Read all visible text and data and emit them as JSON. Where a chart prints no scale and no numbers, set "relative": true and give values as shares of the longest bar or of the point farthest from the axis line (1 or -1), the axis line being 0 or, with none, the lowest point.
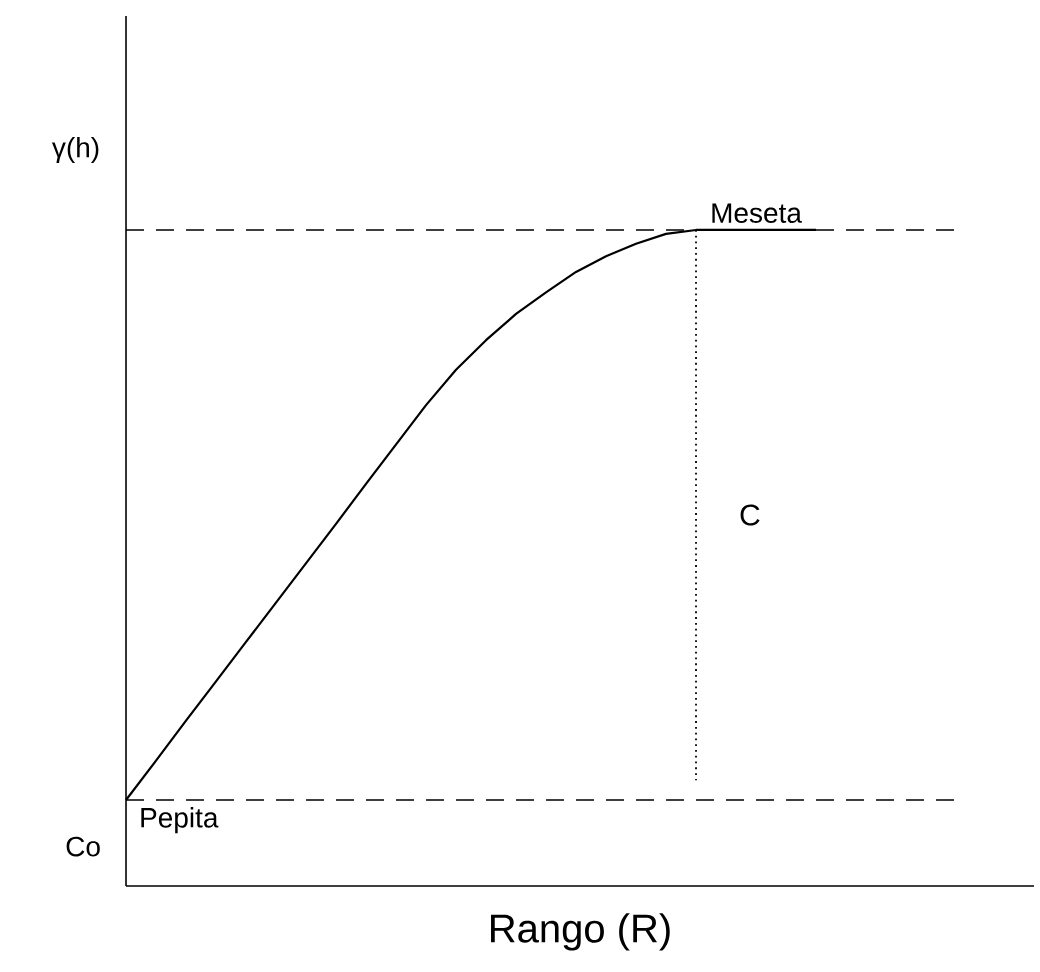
{
  "chart_data": {
    "type": "line",
    "relative": true,
    "color": "#000000",
    "line_style": "solid",
    "xlabel": "Rango (R)",
    "ylabel": "γ(h)",
    "categories": [
      null,
      null,
      null,
      null,
      null,
      null,
      null,
      null,
      null,
      null,
      null,
      null,
      null,
      null,
      null,
      null,
      null,
      null,
      null,
      null,
      null,
      null,
      null,
      null
    ],
    "values": [
      0.131,
      0.191,
      0.252,
      0.312,
      0.372,
      0.432,
      0.492,
      0.552,
      0.613,
      0.673,
      0.733,
      0.787,
      0.832,
      0.872,
      0.905,
      0.936,
      0.96,
      0.979,
      0.994,
      1,
      1,
      1,
      1,
      1
    ],
    "ref_lines": [
      {
        "axis": "y",
        "value": 1,
        "label": "Meseta",
        "line_style": "dashed"
      },
      {
        "axis": "y",
        "value": 0.131,
        "label": "Pepita",
        "line_style": "dashed"
      }
    ],
    "annotations": [
      "Co",
      "C"
    ]
  }
}
